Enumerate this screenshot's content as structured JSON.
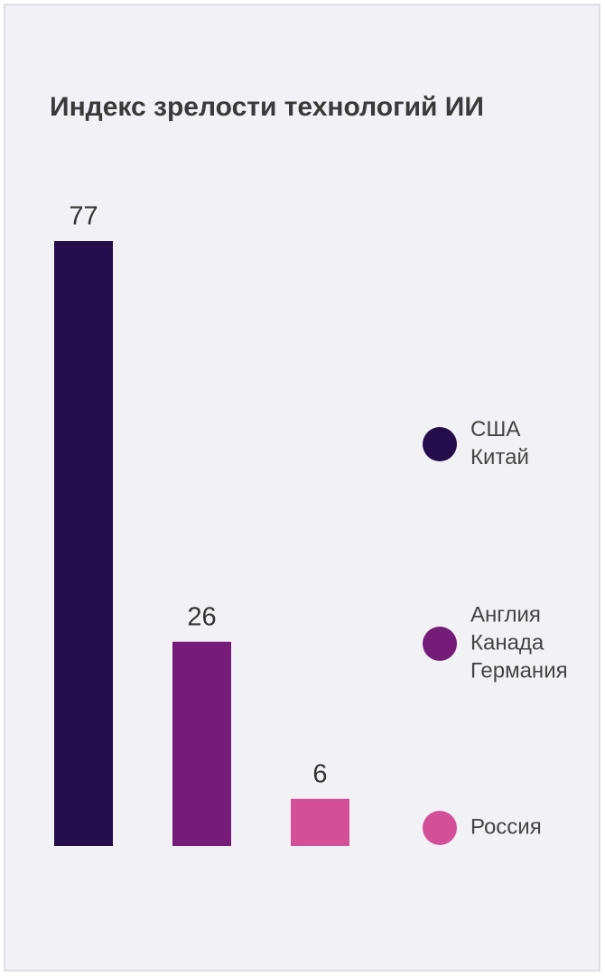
{
  "chart_data": {
    "type": "bar",
    "title": "Индекс зрелости технологий ИИ",
    "categories": [
      [
        "США",
        "Китай"
      ],
      [
        "Англия",
        "Канада",
        "Германия"
      ],
      [
        "Россия"
      ]
    ],
    "values": [
      77,
      26,
      6
    ],
    "colors": [
      "#230d4a",
      "#751b78",
      "#d34f97"
    ]
  }
}
